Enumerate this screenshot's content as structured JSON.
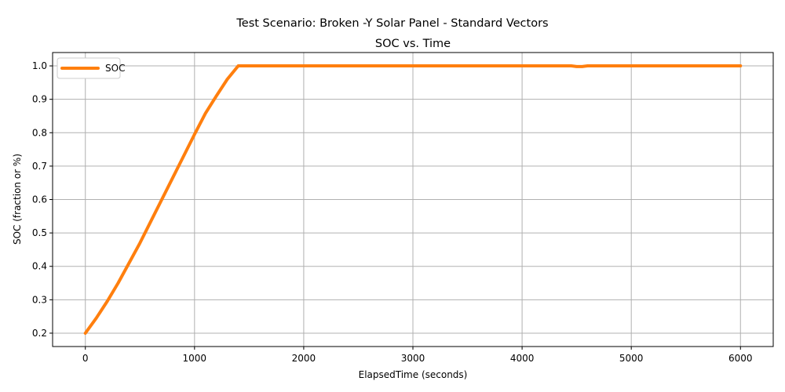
{
  "chart_data": {
    "type": "line",
    "suptitle": "Test Scenario: Broken -Y Solar Panel - Standard Vectors",
    "title": "SOC vs. Time",
    "xlabel": "ElapsedTime (seconds)",
    "ylabel": "SOC (fraction or %)",
    "xlim": [
      -300,
      6300
    ],
    "ylim": [
      0.16,
      1.04
    ],
    "xticks": [
      0,
      1000,
      2000,
      3000,
      4000,
      5000,
      6000
    ],
    "xtick_labels": [
      "0",
      "1000",
      "2000",
      "3000",
      "4000",
      "5000",
      "6000"
    ],
    "yticks": [
      0.2,
      0.3,
      0.4,
      0.5,
      0.6,
      0.7,
      0.8,
      0.9,
      1.0
    ],
    "ytick_labels": [
      "0.2",
      "0.3",
      "0.4",
      "0.5",
      "0.6",
      "0.7",
      "0.8",
      "0.9",
      "1.0"
    ],
    "grid": true,
    "legend_position": "upper-left",
    "series": [
      {
        "name": "SOC",
        "color": "#ff7f0e",
        "x": [
          0,
          100,
          200,
          300,
          400,
          500,
          600,
          700,
          800,
          900,
          1000,
          1100,
          1200,
          1300,
          1400,
          1500,
          1600,
          1700,
          1780,
          1800,
          2000,
          2500,
          3000,
          3500,
          4000,
          4450,
          4500,
          4550,
          4600,
          4650,
          5000,
          5500,
          6000
        ],
        "y": [
          0.2,
          0.245,
          0.295,
          0.35,
          0.41,
          0.47,
          0.535,
          0.6,
          0.665,
          0.73,
          0.795,
          0.858,
          0.91,
          0.96,
          1.0,
          1.0,
          1.0,
          1.0,
          1.0,
          1.0,
          1.0,
          1.0,
          1.0,
          1.0,
          1.0,
          1.0,
          0.998,
          0.998,
          1.0,
          1.0,
          1.0,
          1.0,
          1.0
        ]
      }
    ]
  }
}
